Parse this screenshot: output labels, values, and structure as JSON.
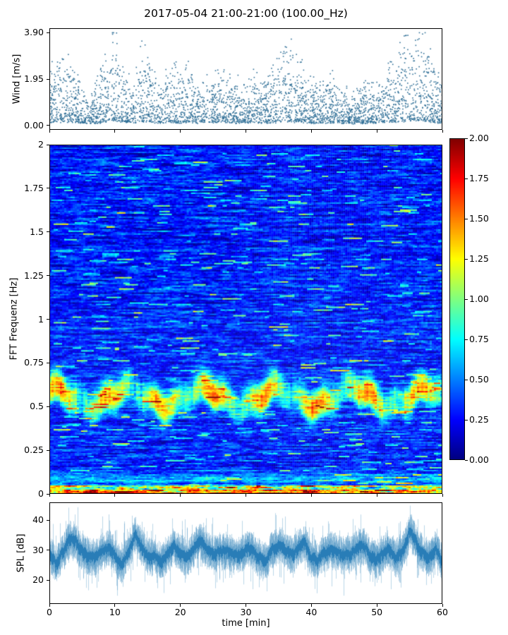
{
  "title": "2017-05-04 21:00-21:00 (100.00_Hz)",
  "chart_data": {
    "type": "multi-panel",
    "x": {
      "label": "time [min]",
      "range": [
        0,
        60
      ]
    },
    "panels": [
      {
        "type": "scatter",
        "name": "wind-speed",
        "ylabel": "Wind [m/s]",
        "ylim": [
          0,
          3.9
        ],
        "point_color": "#2e6e96",
        "yticks": [
          {
            "v": 0,
            "label": "0.00"
          },
          {
            "v": 1.95,
            "label": "1.95"
          },
          {
            "v": 3.9,
            "label": "3.90"
          }
        ],
        "envelope_per_min": [
          2.5,
          2.2,
          2.8,
          2.7,
          2.3,
          1.5,
          1.2,
          1.5,
          2.0,
          3.0,
          3.9,
          2.5,
          2.0,
          1.8,
          2.8,
          2.6,
          2.0,
          1.5,
          2.2,
          2.4,
          1.8,
          2.3,
          1.6,
          1.4,
          1.8,
          2.1,
          2.0,
          2.2,
          1.8,
          1.6,
          1.7,
          1.9,
          1.6,
          1.8,
          2.0,
          2.5,
          3.0,
          2.9,
          2.5,
          2.0,
          1.7,
          1.5,
          1.6,
          2.1,
          1.8,
          1.4,
          1.2,
          1.5,
          1.7,
          1.9,
          1.6,
          1.8,
          2.4,
          2.6,
          3.0,
          3.9,
          3.2,
          3.5,
          2.8,
          2.2,
          1.8
        ]
      },
      {
        "type": "heatmap",
        "name": "fft-spectrogram",
        "ylabel": "FFT Frequenz [Hz]",
        "ylim": [
          0,
          2
        ],
        "colormap": "jet",
        "yticks": [
          {
            "v": 0,
            "label": "0"
          },
          {
            "v": 0.25,
            "label": "0.25"
          },
          {
            "v": 0.5,
            "label": "0.5"
          },
          {
            "v": 0.75,
            "label": "0.75"
          },
          {
            "v": 1,
            "label": "1"
          },
          {
            "v": 1.25,
            "label": "1.25"
          },
          {
            "v": 1.5,
            "label": "1.5"
          },
          {
            "v": 1.75,
            "label": "1.75"
          },
          {
            "v": 2,
            "label": "2"
          }
        ],
        "colorbar": {
          "vmin": 0,
          "vmax": 2,
          "ticks": [
            {
              "v": 0,
              "label": "0.00"
            },
            {
              "v": 0.25,
              "label": "0.25"
            },
            {
              "v": 0.5,
              "label": "0.50"
            },
            {
              "v": 0.75,
              "label": "0.75"
            },
            {
              "v": 1,
              "label": "1.00"
            },
            {
              "v": 1.25,
              "label": "1.25"
            },
            {
              "v": 1.5,
              "label": "1.50"
            },
            {
              "v": 1.75,
              "label": "1.75"
            },
            {
              "v": 2,
              "label": "2.00"
            }
          ]
        },
        "features": {
          "background_level": 0.3,
          "main_band_center_hz": 0.57,
          "main_band_wobble_hz": 0.05,
          "main_band_peak_value": 1.2,
          "secondary_band_center_hz": 0.5,
          "low_speckle_band_center_hz": 0.08,
          "hot_floor_below_hz": 0.045,
          "hot_floor_value_range": [
            1.2,
            2.0
          ]
        }
      },
      {
        "type": "line",
        "name": "sound-pressure-level",
        "ylabel": "SPL [dB]",
        "xlabel": "time [min]",
        "line_color": "#1f77b4",
        "visible_range_db": [
          15,
          43
        ],
        "yticks": [
          {
            "v": 20,
            "label": "20"
          },
          {
            "v": 30,
            "label": "30"
          },
          {
            "v": 40,
            "label": "40"
          }
        ],
        "xticks": [
          {
            "v": 0,
            "label": "0"
          },
          {
            "v": 10,
            "label": "10"
          },
          {
            "v": 20,
            "label": "20"
          },
          {
            "v": 30,
            "label": "30"
          },
          {
            "v": 40,
            "label": "40"
          },
          {
            "v": 50,
            "label": "50"
          },
          {
            "v": 60,
            "label": "60"
          }
        ],
        "mean_per_min": [
          29,
          25,
          29,
          34,
          33,
          29,
          28,
          27,
          29,
          30,
          27,
          25,
          28,
          35,
          31,
          28,
          27,
          26,
          29,
          31,
          28,
          27,
          29,
          32,
          30,
          28,
          30,
          31,
          29,
          28,
          30,
          30,
          27,
          26,
          29,
          31,
          29,
          28,
          30,
          32,
          28,
          26,
          28,
          31,
          29,
          28,
          29,
          30,
          31,
          28,
          27,
          29,
          31,
          28,
          29,
          36,
          33,
          29,
          27,
          30,
          25
        ]
      }
    ]
  }
}
